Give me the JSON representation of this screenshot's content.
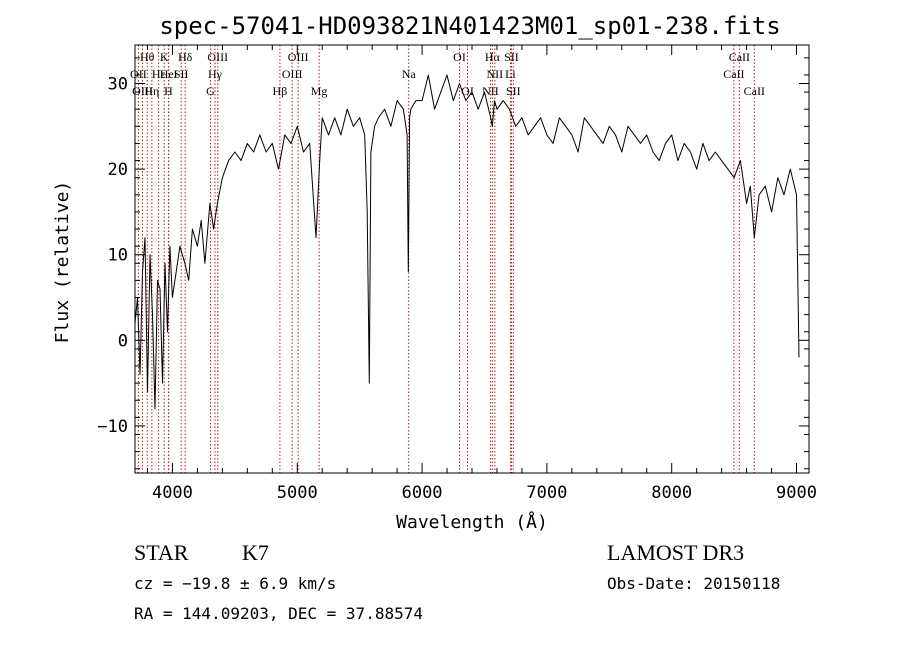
{
  "chart_data": {
    "type": "line",
    "title": "spec-57041-HD093821N401423M01_sp01-238.fits",
    "xlabel": "Wavelength (Å)",
    "ylabel": "Flux (relative)",
    "xlim": [
      3700,
      9100
    ],
    "ylim": [
      -15.5,
      34.5
    ],
    "xticks": [
      4000,
      5000,
      6000,
      7000,
      8000,
      9000
    ],
    "xtick_labels": [
      "4000",
      "5000",
      "6000",
      "7000",
      "8000",
      "9000"
    ],
    "yticks": [
      -10,
      0,
      10,
      20,
      30
    ],
    "ytick_labels": [
      "−10",
      "0",
      "10",
      "20",
      "30"
    ],
    "line_color": "#000000",
    "marker_color": "#b22222",
    "series": [
      {
        "name": "flux",
        "x": [
          3700,
          3720,
          3740,
          3760,
          3780,
          3800,
          3820,
          3840,
          3860,
          3880,
          3900,
          3920,
          3940,
          3960,
          3980,
          4000,
          4030,
          4060,
          4100,
          4130,
          4160,
          4200,
          4230,
          4260,
          4300,
          4330,
          4360,
          4400,
          4450,
          4500,
          4550,
          4600,
          4650,
          4700,
          4750,
          4800,
          4850,
          4900,
          4950,
          5000,
          5050,
          5100,
          5150,
          5180,
          5200,
          5250,
          5300,
          5350,
          5400,
          5450,
          5500,
          5540,
          5560,
          5577,
          5590,
          5620,
          5650,
          5700,
          5750,
          5800,
          5850,
          5880,
          5890,
          5900,
          5910,
          5950,
          6000,
          6050,
          6100,
          6150,
          6200,
          6250,
          6300,
          6350,
          6400,
          6450,
          6500,
          6550,
          6563,
          6580,
          6600,
          6650,
          6700,
          6750,
          6800,
          6850,
          6900,
          6950,
          7000,
          7050,
          7100,
          7150,
          7200,
          7250,
          7300,
          7350,
          7400,
          7450,
          7500,
          7550,
          7600,
          7650,
          7700,
          7750,
          7800,
          7850,
          7900,
          7950,
          8000,
          8050,
          8100,
          8150,
          8200,
          8250,
          8300,
          8350,
          8400,
          8450,
          8500,
          8550,
          8600,
          8630,
          8662,
          8700,
          8750,
          8800,
          8850,
          8900,
          8950,
          9000,
          9020
        ],
        "y": [
          2,
          5,
          -4,
          8,
          12,
          -6,
          10,
          3,
          -8,
          7,
          6,
          -5,
          9,
          1,
          11,
          5,
          8,
          11,
          9,
          7,
          13,
          11,
          14,
          9,
          16,
          13,
          16,
          19,
          21,
          22,
          21,
          23,
          22,
          24,
          22,
          23,
          20,
          24,
          23,
          25,
          22,
          23,
          12,
          21,
          26,
          24,
          26,
          24,
          27,
          25,
          26,
          24,
          15,
          -5,
          22,
          25,
          26,
          27,
          25,
          28,
          27,
          24,
          8,
          26,
          27,
          28,
          28,
          31,
          27,
          29,
          31,
          28,
          30,
          28,
          29,
          27,
          29,
          26,
          25,
          28,
          27,
          28,
          27,
          25,
          26,
          24,
          25,
          26,
          24,
          23,
          26,
          25,
          24,
          22,
          26,
          25,
          24,
          23,
          25,
          24,
          22,
          25,
          24,
          23,
          24,
          22,
          21,
          23,
          24,
          21,
          23,
          22,
          20,
          23,
          21,
          22,
          21,
          20,
          19,
          21,
          16,
          18,
          12,
          17,
          18,
          15,
          19,
          17,
          20,
          17,
          -2
        ]
      }
    ],
    "line_markers": [
      {
        "label": "Hθ",
        "x": 3798,
        "row": 0
      },
      {
        "label": "OII",
        "x": 3727,
        "row": 1
      },
      {
        "label": "OIII",
        "x": 3760,
        "row": 2
      },
      {
        "label": "K",
        "x": 3934,
        "row": 0
      },
      {
        "label": "Hϵ",
        "x": 3889,
        "row": 1
      },
      {
        "label": "Hη",
        "x": 3835,
        "row": 2
      },
      {
        "label": "HeI",
        "x": 3970,
        "row": 1
      },
      {
        "label": "H",
        "x": 3968,
        "row": 2
      },
      {
        "label": "Hδ",
        "x": 4102,
        "row": 0
      },
      {
        "label": "SII",
        "x": 4070,
        "row": 1
      },
      {
        "label": "OIII",
        "x": 4363,
        "row": 0
      },
      {
        "label": "Hγ",
        "x": 4341,
        "row": 1
      },
      {
        "label": "G",
        "x": 4305,
        "row": 2
      },
      {
        "label": "Hβ",
        "x": 4861,
        "row": 2
      },
      {
        "label": "OIII",
        "x": 5007,
        "row": 0
      },
      {
        "label": "OIII",
        "x": 4959,
        "row": 1
      },
      {
        "label": "Mg",
        "x": 5175,
        "row": 2
      },
      {
        "label": "Na",
        "x": 5893,
        "row": 1
      },
      {
        "label": "OI",
        "x": 6300,
        "row": 0
      },
      {
        "label": "OI",
        "x": 6364,
        "row": 2
      },
      {
        "label": "Hα",
        "x": 6563,
        "row": 0
      },
      {
        "label": "NII",
        "x": 6583,
        "row": 1
      },
      {
        "label": "NII",
        "x": 6548,
        "row": 2
      },
      {
        "label": "SII",
        "x": 6716,
        "row": 0
      },
      {
        "label": "Li",
        "x": 6708,
        "row": 1
      },
      {
        "label": "SII",
        "x": 6731,
        "row": 2
      },
      {
        "label": "CaII",
        "x": 8542,
        "row": 0
      },
      {
        "label": "CaII",
        "x": 8498,
        "row": 1
      },
      {
        "label": "CaII",
        "x": 8662,
        "row": 2
      }
    ]
  },
  "info": {
    "class_label": "STAR",
    "subclass": "K7",
    "survey": "LAMOST DR3",
    "redshift": "cz = −19.8 ± 6.9 km/s",
    "obs_date": "Obs-Date: 20150118",
    "coords": "RA = 144.09203, DEC =  37.88574"
  }
}
